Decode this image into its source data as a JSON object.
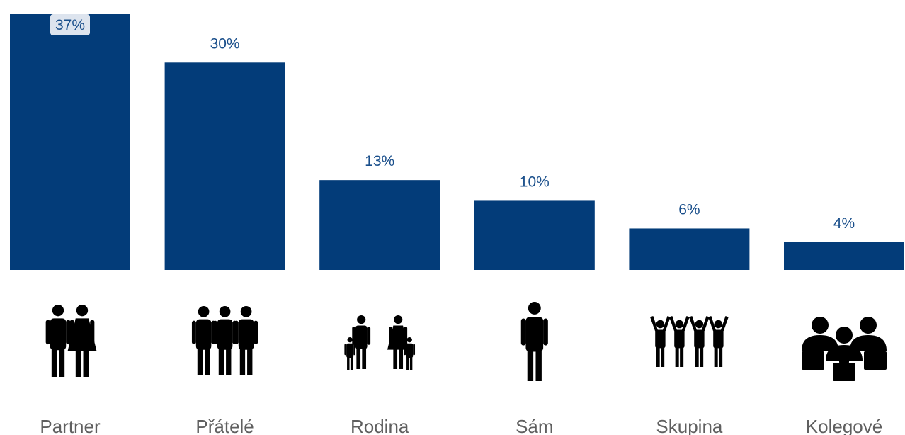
{
  "chart_data": {
    "type": "bar",
    "categories": [
      "Partner",
      "Přátelé",
      "Rodina",
      "Sám",
      "Skupina",
      "Kolegové"
    ],
    "values": [
      37,
      30,
      13,
      10,
      6,
      4
    ],
    "value_labels": [
      "37%",
      "30%",
      "13%",
      "10%",
      "6%",
      "4%"
    ],
    "unit": "%",
    "title": "",
    "xlabel": "",
    "ylabel": "",
    "ylim": [
      0,
      37
    ],
    "grid": false,
    "colors": {
      "bar": "#033c79",
      "value_label": "#1a4f8b",
      "category_label": "#5f5f5f",
      "icon": "#000000"
    },
    "icons": [
      "couple-icon",
      "friends-icon",
      "family-icon",
      "single-person-icon",
      "group-cheering-icon",
      "colleagues-icon"
    ]
  }
}
